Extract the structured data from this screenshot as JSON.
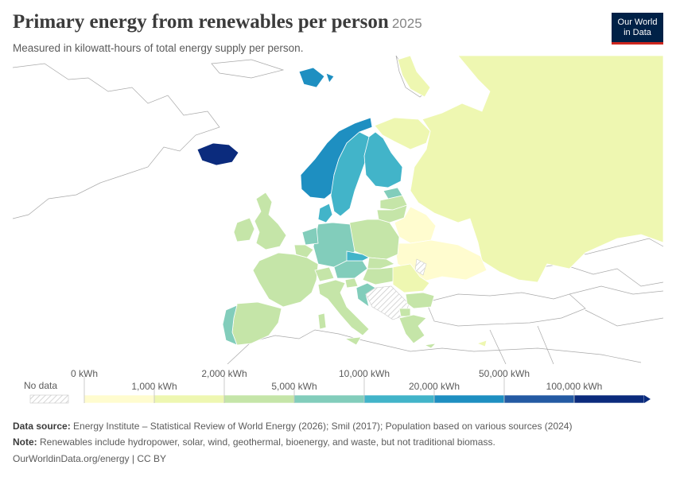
{
  "header": {
    "title": "Primary energy from renewables per person",
    "year": "2025",
    "subtitle": "Measured in kilowatt-hours of total energy supply per person."
  },
  "logo": {
    "line1": "Our World",
    "line2": "in Data",
    "bg_color": "#002147",
    "accent_color": "#ce261e"
  },
  "map_data": {
    "unit": "kWh",
    "year": "2025",
    "legend": {
      "no_data_label": "No data",
      "bins": [
        {
          "label": "0 kWh",
          "color": "#fffccf"
        },
        {
          "label": "1,000 kWh",
          "color": "#eef7b1"
        },
        {
          "label": "2,000 kWh",
          "color": "#c5e5a8"
        },
        {
          "label": "5,000 kWh",
          "color": "#82cdbb"
        },
        {
          "label": "10,000 kWh",
          "color": "#42b4c9"
        },
        {
          "label": "20,000 kWh",
          "color": "#1e8fc1"
        },
        {
          "label": "50,000 kWh",
          "color": "#245aa3"
        },
        {
          "label": "100,000 kWh",
          "color": "#0b2b7d"
        }
      ],
      "max_label": ""
    },
    "regions": [
      {
        "name": "Iceland",
        "color": "#0b2b7d"
      },
      {
        "name": "Svalbard",
        "color": "#1e8fc1"
      },
      {
        "name": "Norway",
        "color": "#1e8fc1"
      },
      {
        "name": "Sweden",
        "color": "#42b4c9"
      },
      {
        "name": "Finland",
        "color": "#42b4c9"
      },
      {
        "name": "Russia",
        "color": "#eef7b1"
      },
      {
        "name": "Estonia",
        "color": "#82cdbb"
      },
      {
        "name": "Latvia",
        "color": "#c5e5a8"
      },
      {
        "name": "Lithuania",
        "color": "#c5e5a8"
      },
      {
        "name": "Belarus",
        "color": "#fffccf"
      },
      {
        "name": "Ukraine",
        "color": "#fffccf"
      },
      {
        "name": "Poland",
        "color": "#c5e5a8"
      },
      {
        "name": "Germany",
        "color": "#82cdbb"
      },
      {
        "name": "Denmark",
        "color": "#42b4c9"
      },
      {
        "name": "Netherlands",
        "color": "#82cdbb"
      },
      {
        "name": "Belgium",
        "color": "#c5e5a8"
      },
      {
        "name": "United Kingdom",
        "color": "#c5e5a8"
      },
      {
        "name": "Ireland",
        "color": "#c5e5a8"
      },
      {
        "name": "France",
        "color": "#c5e5a8"
      },
      {
        "name": "Spain",
        "color": "#c5e5a8"
      },
      {
        "name": "Portugal",
        "color": "#82cdbb"
      },
      {
        "name": "Italy",
        "color": "#c5e5a8"
      },
      {
        "name": "Switzerland",
        "color": "#82cdbb"
      },
      {
        "name": "Austria",
        "color": "#42b4c9"
      },
      {
        "name": "Czechia",
        "color": "#c5e5a8"
      },
      {
        "name": "Slovakia",
        "color": "#c5e5a8"
      },
      {
        "name": "Hungary",
        "color": "#c5e5a8"
      },
      {
        "name": "Slovenia",
        "color": "#82cdbb"
      },
      {
        "name": "Croatia",
        "color": "#c5e5a8"
      },
      {
        "name": "Romania",
        "color": "#eef7b1"
      },
      {
        "name": "Bulgaria",
        "color": "#c5e5a8"
      },
      {
        "name": "North Macedonia",
        "color": "#c5e5a8"
      },
      {
        "name": "Greece",
        "color": "#c5e5a8"
      },
      {
        "name": "Cyprus",
        "color": "#eef7b1"
      }
    ]
  },
  "footer": {
    "source_label": "Data source:",
    "source_text": "Energy Institute – Statistical Review of World Energy (2026); Smil (2017); Population based on various sources (2024)",
    "note_label": "Note:",
    "note_text": "Renewables include hydropower, solar, wind, geothermal, bioenergy, and waste, but not traditional biomass.",
    "link_text": "OurWorldinData.org/energy",
    "license_sep": " | ",
    "license": "CC BY"
  }
}
